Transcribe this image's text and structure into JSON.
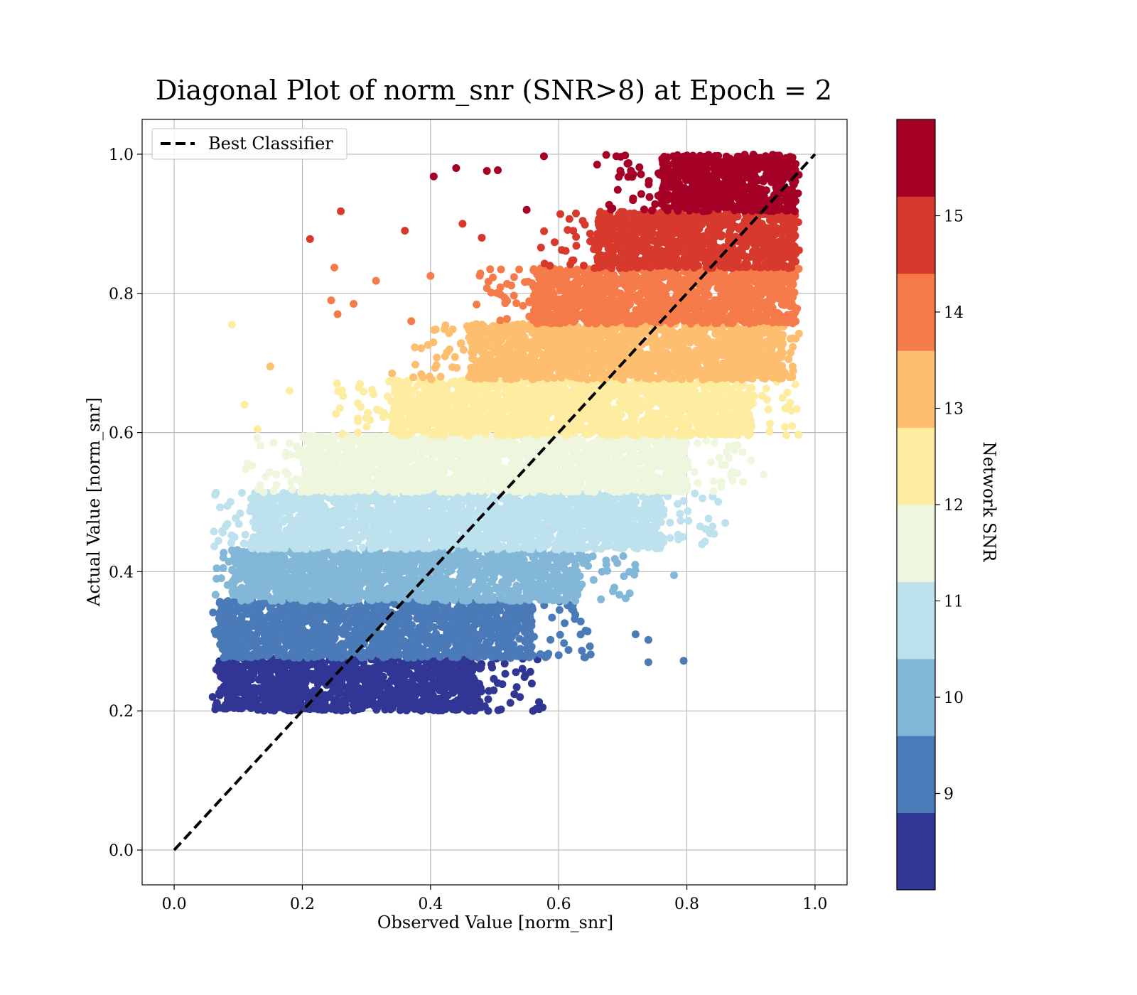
{
  "chart_data": {
    "type": "scatter",
    "title": "Diagonal Plot of norm_snr (SNR>8) at Epoch = 2",
    "xlabel": "Observed Value [norm_snr]",
    "ylabel": "Actual Value [norm_snr]",
    "xlim": [
      -0.05,
      1.05
    ],
    "ylim": [
      -0.05,
      1.05
    ],
    "x_ticks": [
      0.0,
      0.2,
      0.4,
      0.6,
      0.8,
      1.0
    ],
    "y_ticks": [
      0.0,
      0.2,
      0.4,
      0.6,
      0.8,
      1.0
    ],
    "x_tick_labels": [
      "0.0",
      "0.2",
      "0.4",
      "0.6",
      "0.8",
      "1.0"
    ],
    "y_tick_labels": [
      "0.0",
      "0.2",
      "0.4",
      "0.6",
      "0.8",
      "1.0"
    ],
    "grid": true,
    "legend": {
      "placement": "upper-left",
      "entries": [
        "Best Classifier"
      ]
    },
    "reference_line": {
      "name": "Best Classifier",
      "x": [
        0.0,
        1.0
      ],
      "y": [
        0.0,
        1.0
      ],
      "style": "dashed",
      "color": "#000000"
    },
    "colorbar": {
      "label": "Network SNR",
      "range": [
        8,
        16
      ],
      "ticks": [
        9,
        10,
        11,
        12,
        13,
        14,
        15
      ],
      "tick_labels": [
        "9",
        "10",
        "11",
        "12",
        "13",
        "14",
        "15"
      ],
      "colors": [
        "#313695",
        "#4a7ab7",
        "#82b7d8",
        "#bde2ee",
        "#eef7de",
        "#feeca0",
        "#fdbe6f",
        "#f57b4a",
        "#d73a2c",
        "#a50026"
      ]
    },
    "bands": [
      {
        "snr": 8.4,
        "y_range": [
          0.2,
          0.276
        ],
        "x_range": [
          0.07,
          0.48
        ],
        "color": "#313695"
      },
      {
        "snr": 9.2,
        "y_range": [
          0.276,
          0.358
        ],
        "x_range": [
          0.07,
          0.56
        ],
        "color": "#4a7ab7"
      },
      {
        "snr": 10.0,
        "y_range": [
          0.358,
          0.432
        ],
        "x_range": [
          0.09,
          0.63
        ],
        "color": "#82b7d8"
      },
      {
        "snr": 10.8,
        "y_range": [
          0.432,
          0.514
        ],
        "x_range": [
          0.12,
          0.76
        ],
        "color": "#bde2ee"
      },
      {
        "snr": 11.6,
        "y_range": [
          0.514,
          0.596
        ],
        "x_range": [
          0.2,
          0.8
        ],
        "color": "#eef7de"
      },
      {
        "snr": 12.4,
        "y_range": [
          0.596,
          0.676
        ],
        "x_range": [
          0.34,
          0.9
        ],
        "color": "#feeca0"
      },
      {
        "snr": 13.2,
        "y_range": [
          0.676,
          0.756
        ],
        "x_range": [
          0.46,
          0.95
        ],
        "color": "#fdbe6f"
      },
      {
        "snr": 14.0,
        "y_range": [
          0.756,
          0.836
        ],
        "x_range": [
          0.56,
          0.97
        ],
        "color": "#f57b4a"
      },
      {
        "snr": 14.8,
        "y_range": [
          0.836,
          0.918
        ],
        "x_range": [
          0.66,
          0.97
        ],
        "color": "#d73a2c"
      },
      {
        "snr": 15.6,
        "y_range": [
          0.918,
          1.0
        ],
        "x_range": [
          0.76,
          0.97
        ],
        "color": "#a50026"
      }
    ],
    "outliers": [
      {
        "x": 0.09,
        "y": 0.755,
        "color": "#feeca0"
      },
      {
        "x": 0.212,
        "y": 0.878,
        "color": "#d73a2c"
      },
      {
        "x": 0.26,
        "y": 0.918,
        "color": "#d73a2c"
      },
      {
        "x": 0.36,
        "y": 0.89,
        "color": "#d73a2c"
      },
      {
        "x": 0.405,
        "y": 0.968,
        "color": "#a50026"
      },
      {
        "x": 0.44,
        "y": 0.98,
        "color": "#a50026"
      },
      {
        "x": 0.488,
        "y": 0.976,
        "color": "#a50026"
      },
      {
        "x": 0.505,
        "y": 0.977,
        "color": "#a50026"
      },
      {
        "x": 0.577,
        "y": 0.997,
        "color": "#a50026"
      },
      {
        "x": 0.25,
        "y": 0.837,
        "color": "#f57b4a"
      },
      {
        "x": 0.315,
        "y": 0.818,
        "color": "#f57b4a"
      },
      {
        "x": 0.4,
        "y": 0.825,
        "color": "#f57b4a"
      },
      {
        "x": 0.11,
        "y": 0.64,
        "color": "#feeca0"
      },
      {
        "x": 0.15,
        "y": 0.695,
        "color": "#fdbe6f"
      },
      {
        "x": 0.245,
        "y": 0.79,
        "color": "#f57b4a"
      },
      {
        "x": 0.28,
        "y": 0.785,
        "color": "#f57b4a"
      },
      {
        "x": 0.13,
        "y": 0.605,
        "color": "#feeca0"
      },
      {
        "x": 0.92,
        "y": 0.54,
        "color": "#eef7de"
      },
      {
        "x": 0.84,
        "y": 0.465,
        "color": "#bde2ee"
      },
      {
        "x": 0.78,
        "y": 0.395,
        "color": "#82b7d8"
      },
      {
        "x": 0.74,
        "y": 0.27,
        "color": "#4a7ab7"
      },
      {
        "x": 0.795,
        "y": 0.272,
        "color": "#4a7ab7"
      },
      {
        "x": 0.64,
        "y": 0.277,
        "color": "#4a7ab7"
      },
      {
        "x": 0.72,
        "y": 0.31,
        "color": "#4a7ab7"
      },
      {
        "x": 0.74,
        "y": 0.302,
        "color": "#4a7ab7"
      },
      {
        "x": 0.6,
        "y": 0.28,
        "color": "#4a7ab7"
      },
      {
        "x": 0.56,
        "y": 0.2,
        "color": "#313695"
      },
      {
        "x": 0.575,
        "y": 0.205,
        "color": "#313695"
      },
      {
        "x": 0.49,
        "y": 0.2,
        "color": "#313695"
      },
      {
        "x": 0.06,
        "y": 0.22,
        "color": "#313695"
      },
      {
        "x": 0.065,
        "y": 0.31,
        "color": "#4a7ab7"
      },
      {
        "x": 0.975,
        "y": 0.862,
        "color": "#d73a2c"
      },
      {
        "x": 0.97,
        "y": 0.735,
        "color": "#fdbe6f"
      },
      {
        "x": 0.965,
        "y": 0.695,
        "color": "#fdbe6f"
      },
      {
        "x": 0.66,
        "y": 0.985,
        "color": "#a50026"
      },
      {
        "x": 0.69,
        "y": 0.997,
        "color": "#a50026"
      },
      {
        "x": 0.55,
        "y": 0.92,
        "color": "#a50026"
      },
      {
        "x": 0.45,
        "y": 0.9,
        "color": "#d73a2c"
      },
      {
        "x": 0.48,
        "y": 0.88,
        "color": "#d73a2c"
      },
      {
        "x": 0.34,
        "y": 0.685,
        "color": "#fdbe6f"
      },
      {
        "x": 0.37,
        "y": 0.76,
        "color": "#f57b4a"
      },
      {
        "x": 0.18,
        "y": 0.66,
        "color": "#feeca0"
      },
      {
        "x": 0.255,
        "y": 0.77,
        "color": "#f57b4a"
      },
      {
        "x": 0.29,
        "y": 0.67,
        "color": "#feeca0"
      },
      {
        "x": 0.86,
        "y": 0.47,
        "color": "#bde2ee"
      },
      {
        "x": 0.9,
        "y": 0.56,
        "color": "#eef7de"
      }
    ]
  }
}
